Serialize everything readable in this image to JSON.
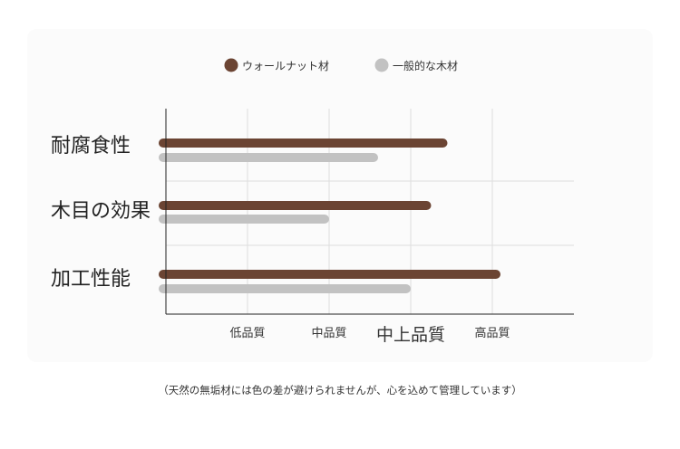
{
  "chart_data": {
    "type": "bar",
    "orientation": "horizontal",
    "categories": [
      "耐腐食性",
      "木目の効果",
      "加工性能"
    ],
    "series": [
      {
        "name": "ウォールナット材",
        "color": "#6b4433",
        "values": [
          3.45,
          3.25,
          4.1
        ]
      },
      {
        "name": "一般的な木材",
        "color": "#c2c2c2",
        "values": [
          2.6,
          2.0,
          3.0
        ]
      }
    ],
    "x_ticks": [
      "低品質",
      "中品質",
      "中上品質",
      "高品質"
    ],
    "xlim": [
      0,
      5
    ],
    "grid": true,
    "legend": "top"
  },
  "footnote": "（天然の無垢材には色の差が避けられませんが、心を込めて管理しています）"
}
